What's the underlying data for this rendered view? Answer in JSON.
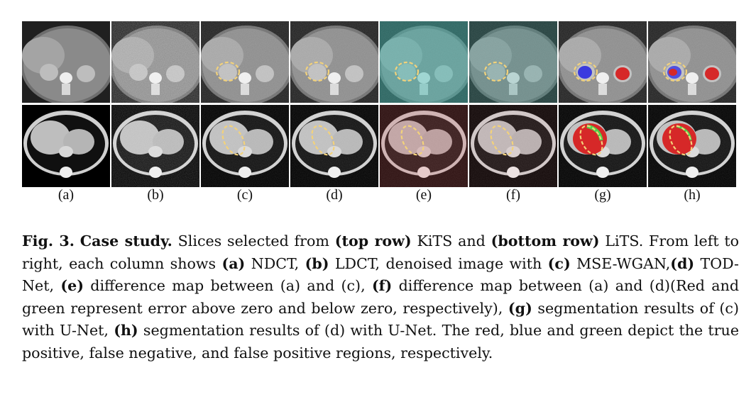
{
  "panels": {
    "columns": [
      "(a)",
      "(b)",
      "(c)",
      "(d)",
      "(e)",
      "(f)",
      "(g)",
      "(h)"
    ],
    "top_row_theme": [
      "ndct",
      "ldct",
      "denoised",
      "denoised",
      "diff",
      "diff",
      "seg",
      "seg"
    ]
  },
  "caption": {
    "fig": "Fig. 3.",
    "heading": "Case study.",
    "t1": "Slices selected from",
    "b_top": "(top row)",
    "t2": "KiTS and",
    "b_bottom": "(bottom row)",
    "t3": "LiTS. From left to right, each column shows",
    "b_a": "(a)",
    "t4": "NDCT,",
    "b_b": "(b)",
    "t5": "LDCT, denoised image with",
    "b_c": "(c)",
    "t6": "MSE-WGAN,",
    "b_d": "(d)",
    "t7": "TOD-Net,",
    "b_e": "(e)",
    "t8": "difference map between (a) and (c),",
    "b_f": "(f)",
    "t9": "difference map between (a) and (d)(Red and green represent error above zero and below zero, respectively),",
    "b_g": "(g)",
    "t10": "segmentation results of (c) with U-Net,",
    "b_h": "(h)",
    "t11": "segmentation results of (d) with U-Net. The red, blue and green depict the true positive, false negative, and false positive regions, respectively."
  }
}
